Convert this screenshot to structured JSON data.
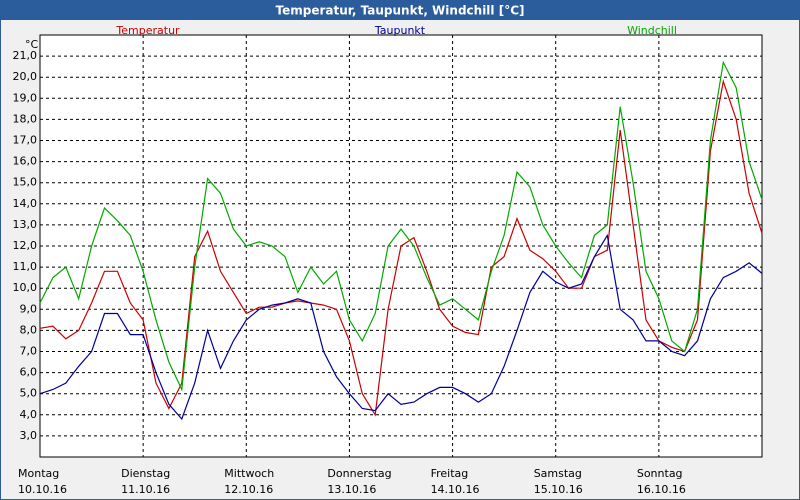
{
  "chart_data": {
    "type": "line",
    "title": "Temperatur, Taupunkt, Windchill [°C]",
    "y_unit": "°C",
    "x": [
      0,
      3,
      6,
      9,
      12,
      15,
      18,
      21,
      24,
      27,
      30,
      33,
      36,
      39,
      42,
      45,
      48,
      51,
      54,
      57,
      60,
      63,
      66,
      69,
      72,
      75,
      78,
      81,
      84,
      87,
      90,
      93,
      96,
      99,
      102,
      105,
      108,
      111,
      114,
      117,
      120,
      123,
      126,
      129,
      132,
      135,
      138,
      141,
      144,
      147,
      150,
      153,
      156,
      159,
      162,
      165,
      168
    ],
    "xlim": [
      0,
      168
    ],
    "xticks": [
      {
        "value": 0,
        "label": "Montag",
        "date": "10.10.16"
      },
      {
        "value": 24,
        "label": "Dienstag",
        "date": "11.10.16"
      },
      {
        "value": 48,
        "label": "Mittwoch",
        "date": "12.10.16"
      },
      {
        "value": 72,
        "label": "Donnerstag",
        "date": "13.10.16"
      },
      {
        "value": 96,
        "label": "Freitag",
        "date": "14.10.16"
      },
      {
        "value": 120,
        "label": "Samstag",
        "date": "15.10.16"
      },
      {
        "value": 144,
        "label": "Sonntag",
        "date": "16.10.16"
      }
    ],
    "ylim": [
      2,
      22
    ],
    "yticks": [
      {
        "value": 3,
        "label": "3,0"
      },
      {
        "value": 4,
        "label": "4,0"
      },
      {
        "value": 5,
        "label": "5,0"
      },
      {
        "value": 6,
        "label": "6,0"
      },
      {
        "value": 7,
        "label": "7,0"
      },
      {
        "value": 8,
        "label": "8,0"
      },
      {
        "value": 9,
        "label": "9,0"
      },
      {
        "value": 10,
        "label": "10,0"
      },
      {
        "value": 11,
        "label": "11,0"
      },
      {
        "value": 12,
        "label": "12,0"
      },
      {
        "value": 13,
        "label": "13,0"
      },
      {
        "value": 14,
        "label": "14,0"
      },
      {
        "value": 15,
        "label": "15,0"
      },
      {
        "value": 16,
        "label": "16,0"
      },
      {
        "value": 17,
        "label": "17,0"
      },
      {
        "value": 18,
        "label": "18,0"
      },
      {
        "value": 19,
        "label": "19,0"
      },
      {
        "value": 20,
        "label": "20,0"
      },
      {
        "value": 21,
        "label": "21,0"
      }
    ],
    "grid": true,
    "series": [
      {
        "name": "Temperatur",
        "color": "#cc0000",
        "values": [
          8.1,
          8.2,
          7.6,
          8.0,
          9.3,
          10.8,
          10.8,
          9.3,
          8.5,
          5.5,
          4.3,
          5.5,
          11.5,
          12.7,
          10.8,
          9.8,
          8.8,
          9.1,
          9.1,
          9.3,
          9.4,
          9.3,
          9.2,
          9.0,
          7.5,
          5.0,
          4.0,
          9.0,
          12.0,
          12.4,
          10.8,
          9.0,
          8.2,
          7.9,
          7.8,
          11.0,
          11.5,
          13.3,
          11.8,
          11.4,
          10.8,
          10.0,
          10.0,
          11.5,
          11.8,
          17.5,
          13.0,
          8.5,
          7.5,
          7.2,
          7.0,
          8.5,
          16.5,
          19.8,
          18.0,
          14.5,
          12.6
        ]
      },
      {
        "name": "Taupunkt",
        "color": "#000099",
        "values": [
          5.0,
          5.2,
          5.5,
          6.3,
          7.0,
          8.8,
          8.8,
          7.8,
          7.8,
          6.0,
          4.5,
          3.8,
          5.5,
          8.0,
          6.2,
          7.5,
          8.5,
          9.0,
          9.2,
          9.3,
          9.5,
          9.3,
          7.0,
          5.8,
          5.0,
          4.3,
          4.2,
          5.0,
          4.5,
          4.6,
          5.0,
          5.3,
          5.3,
          5.0,
          4.6,
          5.0,
          6.3,
          8.0,
          9.8,
          10.8,
          10.3,
          10.0,
          10.2,
          11.5,
          12.5,
          9.0,
          8.5,
          7.5,
          7.5,
          7.0,
          6.8,
          7.5,
          9.5,
          10.5,
          10.8,
          11.2,
          10.7
        ]
      },
      {
        "name": "Windchill",
        "color": "#00aa00",
        "values": [
          9.3,
          10.5,
          11.0,
          9.5,
          12.0,
          13.8,
          13.2,
          12.5,
          10.8,
          8.5,
          6.5,
          5.2,
          11.0,
          15.2,
          14.5,
          12.8,
          12.0,
          12.2,
          12.0,
          11.5,
          9.8,
          11.0,
          10.2,
          10.8,
          8.5,
          7.5,
          8.8,
          12.0,
          12.8,
          12.0,
          10.5,
          9.2,
          9.5,
          9.0,
          8.5,
          10.8,
          12.5,
          15.5,
          14.8,
          13.0,
          12.0,
          11.2,
          10.5,
          12.5,
          13.0,
          18.6,
          15.0,
          10.8,
          9.5,
          7.5,
          7.0,
          9.0,
          17.0,
          20.7,
          19.5,
          16.0,
          14.2
        ]
      }
    ]
  }
}
